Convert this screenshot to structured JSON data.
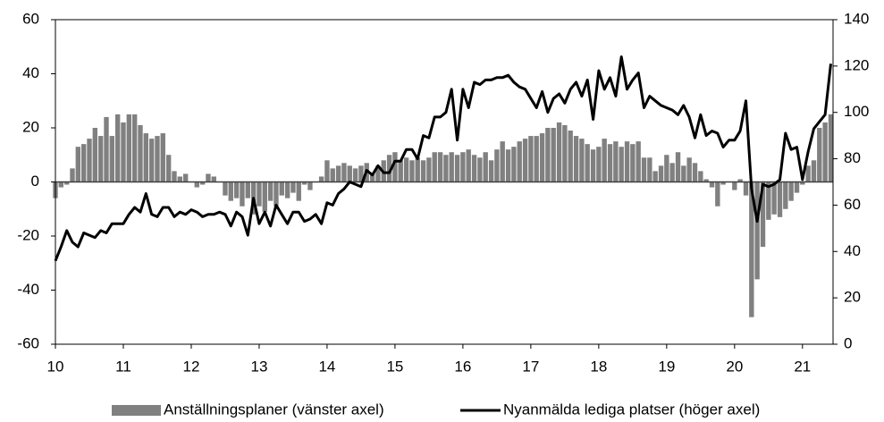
{
  "chart_data": {
    "type": "bar",
    "x": [
      10,
      10.083,
      10.167,
      10.25,
      10.333,
      10.417,
      10.5,
      10.583,
      10.667,
      10.75,
      10.833,
      10.917,
      11,
      11.083,
      11.167,
      11.25,
      11.333,
      11.417,
      11.5,
      11.583,
      11.667,
      11.75,
      11.833,
      11.917,
      12,
      12.083,
      12.167,
      12.25,
      12.333,
      12.417,
      12.5,
      12.583,
      12.667,
      12.75,
      12.833,
      12.917,
      13,
      13.083,
      13.167,
      13.25,
      13.333,
      13.417,
      13.5,
      13.583,
      13.667,
      13.75,
      13.833,
      13.917,
      14,
      14.083,
      14.167,
      14.25,
      14.333,
      14.417,
      14.5,
      14.583,
      14.667,
      14.75,
      14.833,
      14.917,
      15,
      15.083,
      15.167,
      15.25,
      15.333,
      15.417,
      15.5,
      15.583,
      15.667,
      15.75,
      15.833,
      15.917,
      16,
      16.083,
      16.167,
      16.25,
      16.333,
      16.417,
      16.5,
      16.583,
      16.667,
      16.75,
      16.833,
      16.917,
      17,
      17.083,
      17.167,
      17.25,
      17.333,
      17.417,
      17.5,
      17.583,
      17.667,
      17.75,
      17.833,
      17.917,
      18,
      18.083,
      18.167,
      18.25,
      18.333,
      18.417,
      18.5,
      18.583,
      18.667,
      18.75,
      18.833,
      18.917,
      19,
      19.083,
      19.167,
      19.25,
      19.333,
      19.417,
      19.5,
      19.583,
      19.667,
      19.75,
      19.833,
      19.917,
      20,
      20.083,
      20.167,
      20.25,
      20.333,
      20.417,
      20.5,
      20.583,
      20.667,
      20.75,
      20.833,
      20.917,
      21,
      21.083,
      21.167,
      21.25,
      21.333,
      21.417
    ],
    "series": [
      {
        "name": "Anställningsplaner (vänster axel)",
        "type": "bar",
        "color": "#808080",
        "values": [
          -6,
          -2,
          -1,
          5,
          13,
          14,
          16,
          20,
          17,
          24,
          17,
          25,
          22,
          25,
          25,
          21,
          18,
          16,
          17,
          18,
          10,
          4,
          2,
          3,
          0,
          -2,
          -1,
          3,
          2,
          0,
          -5,
          -7,
          -6,
          -9,
          -6,
          -12,
          -9,
          -11,
          -7,
          -9,
          -5,
          -6,
          -4,
          -7,
          -1,
          -3,
          0,
          2,
          8,
          5,
          6,
          7,
          6,
          5,
          6,
          7,
          3,
          6,
          8,
          10,
          11,
          8,
          9,
          8,
          9,
          8,
          9,
          11,
          11,
          10,
          11,
          10,
          11,
          12,
          10,
          9,
          11,
          8,
          12,
          15,
          12,
          13,
          15,
          16,
          17,
          17,
          18,
          20,
          20,
          22,
          21,
          19,
          17,
          16,
          14,
          12,
          13,
          16,
          14,
          15,
          13,
          15,
          14,
          15,
          9,
          9,
          4,
          6,
          10,
          7,
          11,
          6,
          9,
          7,
          4,
          1,
          -2,
          -9,
          -1,
          0,
          -3,
          1,
          -5,
          -50,
          -36,
          -24,
          -14,
          -12,
          -13,
          -10,
          -7,
          -4,
          -1,
          6,
          8,
          20,
          22,
          25
        ]
      },
      {
        "name": "Nyanmälda lediga platser (höger axel)",
        "type": "line",
        "color": "#000000",
        "axis": "y2",
        "values": [
          36,
          42,
          49,
          44,
          42,
          48,
          47,
          46,
          49,
          48,
          52,
          52,
          52,
          56,
          59,
          57,
          65,
          56,
          55,
          59,
          59,
          55,
          57,
          56,
          58,
          57,
          55,
          56,
          56,
          57,
          56,
          51,
          57,
          55,
          47,
          63,
          52,
          57,
          51,
          60,
          56,
          52,
          57,
          57,
          53,
          54,
          56,
          52,
          61,
          60,
          65,
          67,
          70,
          69,
          68,
          75,
          73,
          77,
          74,
          74,
          79,
          79,
          84,
          84,
          80,
          90,
          89,
          98,
          98,
          100,
          110,
          88,
          110,
          102,
          113,
          112,
          114,
          114,
          115,
          115,
          116,
          113,
          111,
          110,
          106,
          102,
          109,
          100,
          106,
          108,
          104,
          110,
          113,
          107,
          114,
          97,
          118,
          110,
          115,
          107,
          124,
          110,
          114,
          117,
          102,
          107,
          105,
          103,
          102,
          101,
          99,
          103,
          98,
          89,
          99,
          90,
          92,
          91,
          85,
          88,
          88,
          92,
          105,
          67,
          53,
          69,
          68,
          69,
          71,
          91,
          84,
          85,
          71,
          83,
          93,
          96,
          99,
          121
        ]
      }
    ],
    "xlim": [
      10,
      21.45
    ],
    "xticks": [
      10,
      11,
      12,
      13,
      14,
      15,
      16,
      17,
      18,
      19,
      20,
      21
    ],
    "ylim": [
      -60,
      60
    ],
    "yticks": [
      -60,
      -40,
      -20,
      0,
      20,
      40,
      60
    ],
    "y2lim": [
      0,
      140
    ],
    "y2ticks": [
      0,
      20,
      40,
      60,
      80,
      100,
      120,
      140
    ],
    "legend": "bottom"
  }
}
